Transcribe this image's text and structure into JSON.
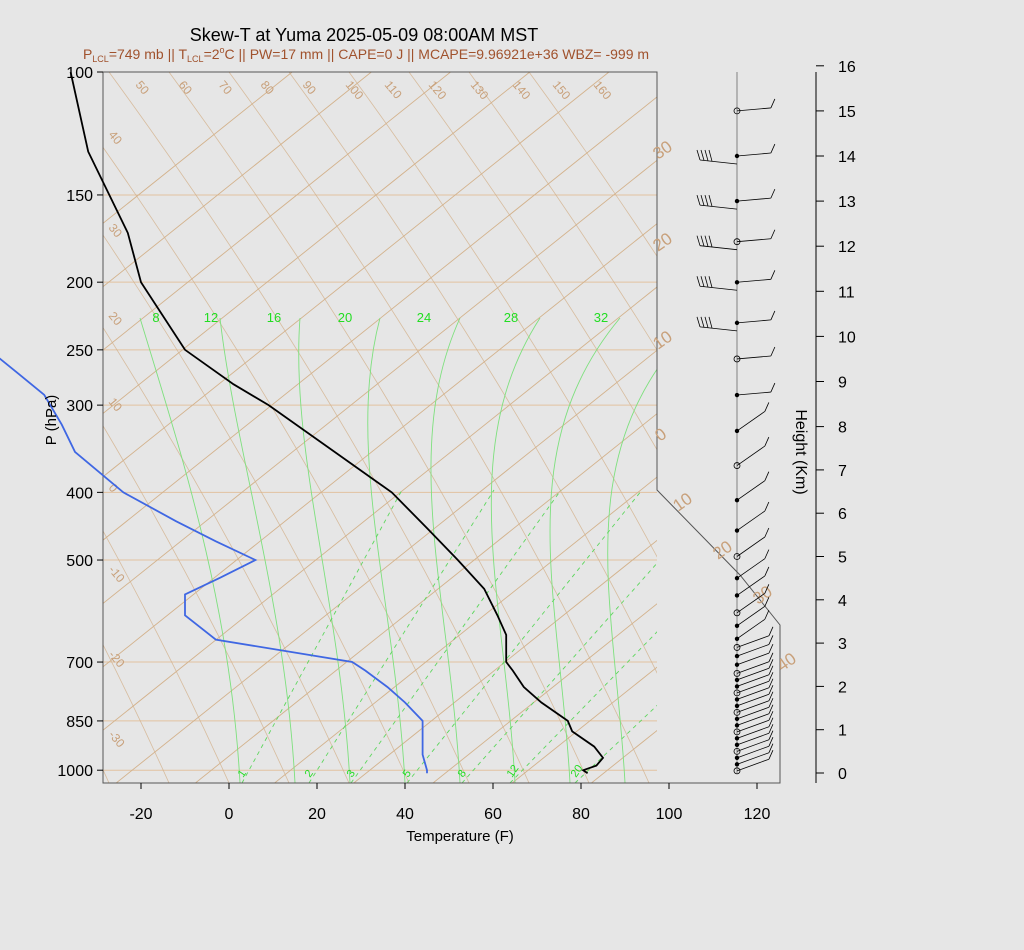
{
  "chart_data": {
    "type": "skew-t",
    "title": "Skew-T at Yuma 2025-05-09 08:00AM MST",
    "subtitle": {
      "p1": "P",
      "p1_sub": "LCL",
      "p2": "=749 mb || T",
      "p2_sub": "LCL",
      "p3": "=2",
      "p3_sup": "o",
      "p4": "C || PW=17 mm || CAPE=0 J || MCAPE=9.96921e+36 WBZ= -999 m"
    },
    "xlabel": "Temperature (F)",
    "ylabel": "P (hPa)",
    "right_axis_label": "Height (Km)",
    "x_ticks": [
      -20,
      0,
      20,
      40,
      60,
      80,
      100,
      120
    ],
    "x_tick_labels": [
      "-20",
      "0",
      "20",
      "40",
      "60",
      "80",
      "100",
      "120"
    ],
    "pressure_ticks": [
      100,
      150,
      200,
      250,
      300,
      400,
      500,
      700,
      850,
      1000
    ],
    "pressure_tick_labels": [
      "100",
      "150",
      "200",
      "250",
      "300",
      "400",
      "500",
      "700",
      "850",
      "1000"
    ],
    "height_ticks_km": [
      0,
      1,
      2,
      3,
      4,
      5,
      6,
      7,
      8,
      9,
      10,
      11,
      12,
      13,
      14,
      15,
      16
    ],
    "height_tick_labels": [
      "0",
      "1",
      "2",
      "3",
      "4",
      "5",
      "6",
      "7",
      "8",
      "9",
      "10",
      "11",
      "12",
      "13",
      "14",
      "15",
      "16"
    ],
    "plim_hpa": [
      1050,
      100
    ],
    "xlim_f": [
      -28,
      96
    ],
    "skew_isotherm_labels_c": [
      "40",
      "30",
      "20",
      "10",
      "0",
      "-10",
      "-20",
      "-30",
      "50",
      "60",
      "70",
      "80",
      "90",
      "100",
      "110",
      "120",
      "130",
      "140",
      "150",
      "160"
    ],
    "right_isotherm_labels_c": [
      "30",
      "20",
      "10",
      "0",
      "10",
      "20",
      "30",
      "40"
    ],
    "dry_adiabat_labels": [
      "8",
      "12",
      "16",
      "20",
      "24",
      "28",
      "32"
    ],
    "mixing_ratio_labels": [
      "1",
      "2",
      "3",
      "5",
      "8",
      "12",
      "20"
    ],
    "temperature_profile": [
      {
        "p": 1010,
        "t": 81.5
      },
      {
        "p": 1000,
        "t": 80.5
      },
      {
        "p": 985,
        "t": 83.5
      },
      {
        "p": 960,
        "t": 85
      },
      {
        "p": 925,
        "t": 83
      },
      {
        "p": 880,
        "t": 78
      },
      {
        "p": 850,
        "t": 77
      },
      {
        "p": 800,
        "t": 71
      },
      {
        "p": 760,
        "t": 67
      },
      {
        "p": 720,
        "t": 64.5
      },
      {
        "p": 700,
        "t": 63
      },
      {
        "p": 670,
        "t": 63
      },
      {
        "p": 640,
        "t": 63
      },
      {
        "p": 600,
        "t": 61
      },
      {
        "p": 550,
        "t": 58
      },
      {
        "p": 500,
        "t": 52
      },
      {
        "p": 450,
        "t": 45
      },
      {
        "p": 400,
        "t": 37
      },
      {
        "p": 350,
        "t": 24
      },
      {
        "p": 300,
        "t": 9
      },
      {
        "p": 280,
        "t": 1
      },
      {
        "p": 250,
        "t": -10
      },
      {
        "p": 200,
        "t": -20
      },
      {
        "p": 170,
        "t": -23
      },
      {
        "p": 130,
        "t": -32
      },
      {
        "p": 100,
        "t": -36
      }
    ],
    "dewpoint_profile": [
      {
        "p": 1010,
        "t": 45
      },
      {
        "p": 1000,
        "t": 45
      },
      {
        "p": 950,
        "t": 44
      },
      {
        "p": 900,
        "t": 44
      },
      {
        "p": 850,
        "t": 44
      },
      {
        "p": 800,
        "t": 40
      },
      {
        "p": 760,
        "t": 36
      },
      {
        "p": 720,
        "t": 31
      },
      {
        "p": 700,
        "t": 28
      },
      {
        "p": 650,
        "t": -3
      },
      {
        "p": 600,
        "t": -10
      },
      {
        "p": 560,
        "t": -10
      },
      {
        "p": 530,
        "t": -2
      },
      {
        "p": 500,
        "t": 6
      },
      {
        "p": 470,
        "t": -3
      },
      {
        "p": 440,
        "t": -12
      },
      {
        "p": 400,
        "t": -24
      },
      {
        "p": 350,
        "t": -35
      },
      {
        "p": 320,
        "t": -38
      },
      {
        "p": 290,
        "t": -42
      },
      {
        "p": 270,
        "t": -48
      },
      {
        "p": 240,
        "t": -58
      },
      {
        "p": 220,
        "t": -60
      },
      {
        "p": 180,
        "t": -63
      },
      {
        "p": 150,
        "t": -67
      },
      {
        "p": 130,
        "t": -73
      },
      {
        "p": 110,
        "t": -78
      },
      {
        "p": 100,
        "t": -80
      }
    ],
    "wind_barbs_height_km": [
      0.05,
      0.2,
      0.35,
      0.5,
      0.65,
      0.8,
      0.95,
      1.1,
      1.25,
      1.4,
      1.55,
      1.7,
      1.85,
      2.0,
      2.15,
      2.3,
      2.5,
      2.7,
      2.9,
      3.1,
      3.4,
      3.7,
      4.1,
      4.5,
      5.0,
      5.6,
      6.3,
      7.1,
      7.9,
      8.7,
      9.5,
      10.3,
      11.2,
      12.1,
      13.0,
      14.0,
      15.0
    ]
  },
  "colors": {
    "background": "#e6e6e6",
    "isotherm": "#d3b28c",
    "isobar": "#e2c2a0",
    "label_tan": "#c8a07a",
    "moist_adiabat": "#7ee07e",
    "mixing_ratio": "#5ed65e",
    "temperature": "#000000",
    "dewpoint": "#3f67e3",
    "subtitle": "#a0522d",
    "green_label": "#22dd22"
  }
}
